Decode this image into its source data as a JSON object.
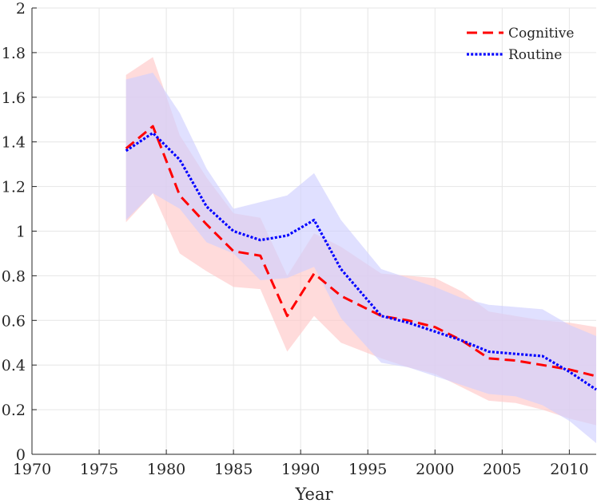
{
  "chart_data": {
    "type": "line",
    "title": "",
    "xlabel": "Year",
    "ylabel": "",
    "xlim": [
      1970,
      2012
    ],
    "ylim": [
      0,
      2
    ],
    "xticks": [
      1970,
      1975,
      1980,
      1985,
      1990,
      1995,
      2000,
      2005,
      2010
    ],
    "yticks": [
      0,
      0.2,
      0.4,
      0.6,
      0.8,
      1,
      1.2,
      1.4,
      1.6,
      1.8,
      2
    ],
    "xtick_labels": [
      "1970",
      "1975",
      "1980",
      "1985",
      "1990",
      "1995",
      "2000",
      "2005",
      "2010"
    ],
    "ytick_labels": [
      "0",
      "0.2",
      "0.4",
      "0.6",
      "0.8",
      "1",
      "1.2",
      "1.4",
      "1.6",
      "1.8",
      "2"
    ],
    "grid": true,
    "legend_position": "top-right",
    "series": [
      {
        "name": "Cognitive",
        "color": "#ff0000",
        "style": "dashed",
        "band_color": "#ffc8c8",
        "x": [
          1977,
          1979,
          1981,
          1983,
          1985,
          1987,
          1989,
          1991,
          1993,
          1996,
          1998,
          2000,
          2002,
          2004,
          2006,
          2008,
          2010,
          2012
        ],
        "values": [
          1.37,
          1.47,
          1.16,
          1.03,
          0.91,
          0.89,
          0.62,
          0.81,
          0.71,
          0.62,
          0.6,
          0.57,
          0.51,
          0.43,
          0.42,
          0.4,
          0.38,
          0.35
        ],
        "lower": [
          1.04,
          1.17,
          0.9,
          0.82,
          0.75,
          0.74,
          0.46,
          0.62,
          0.5,
          0.43,
          0.39,
          0.36,
          0.3,
          0.24,
          0.23,
          0.2,
          0.16,
          0.13
        ],
        "upper": [
          1.7,
          1.78,
          1.43,
          1.24,
          1.08,
          1.06,
          0.8,
          0.99,
          0.93,
          0.81,
          0.8,
          0.79,
          0.73,
          0.64,
          0.62,
          0.6,
          0.59,
          0.57
        ]
      },
      {
        "name": "Routine",
        "color": "#0000ff",
        "style": "dotted",
        "band_color": "#cfd0ff",
        "x": [
          1977,
          1979,
          1981,
          1983,
          1985,
          1987,
          1989,
          1991,
          1993,
          1996,
          1998,
          2000,
          2002,
          2004,
          2006,
          2008,
          2010,
          2012
        ],
        "values": [
          1.36,
          1.44,
          1.32,
          1.11,
          1.0,
          0.96,
          0.98,
          1.05,
          0.83,
          0.62,
          0.59,
          0.55,
          0.51,
          0.46,
          0.45,
          0.44,
          0.37,
          0.29
        ],
        "lower": [
          1.05,
          1.17,
          1.1,
          0.95,
          0.9,
          0.78,
          0.79,
          0.84,
          0.61,
          0.41,
          0.39,
          0.35,
          0.31,
          0.27,
          0.26,
          0.22,
          0.15,
          0.05
        ],
        "upper": [
          1.68,
          1.71,
          1.53,
          1.28,
          1.1,
          1.13,
          1.16,
          1.26,
          1.05,
          0.83,
          0.79,
          0.75,
          0.7,
          0.67,
          0.66,
          0.65,
          0.58,
          0.53
        ]
      }
    ]
  }
}
